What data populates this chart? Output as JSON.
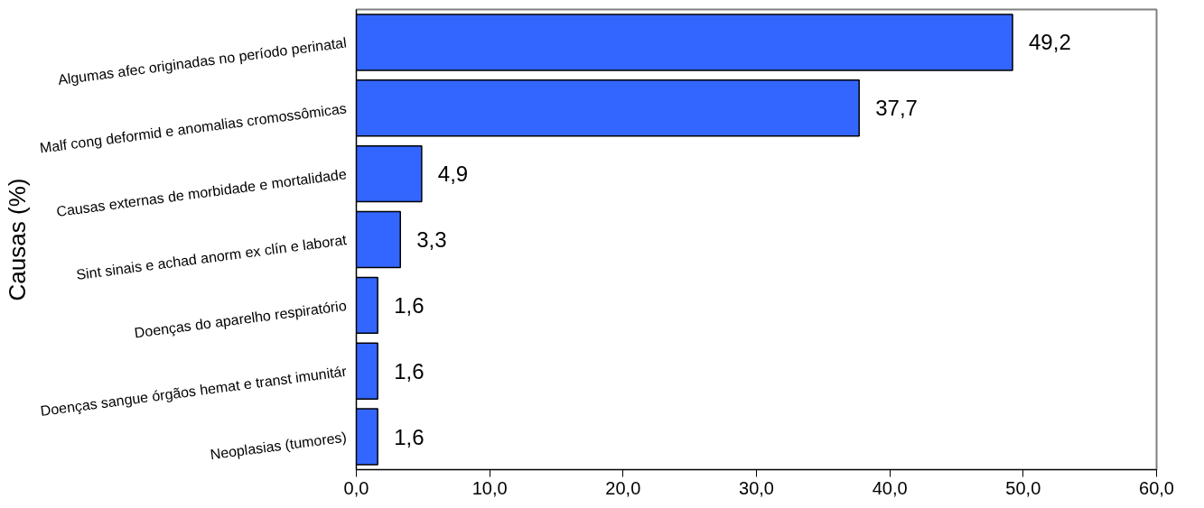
{
  "chart_data": {
    "type": "bar",
    "orientation": "horizontal",
    "ylabel": "Causas (%)",
    "categories": [
      "Algumas afec originadas no período perinatal",
      "Malf cong deformid e anomalias cromossômicas",
      "Causas externas de morbidade e mortalidade",
      "Sint sinais e achad anorm ex clín e laborat",
      "Doenças do aparelho respiratório",
      "Doenças sangue órgãos hemat e transt imunitár",
      "Neoplasias (tumores)"
    ],
    "values": [
      49.2,
      37.7,
      4.9,
      3.3,
      1.6,
      1.6,
      1.6
    ],
    "value_labels": [
      "49,2",
      "37,7",
      "4,9",
      "3,3",
      "1,6",
      "1,6",
      "1,6"
    ],
    "color": "#3366ff",
    "xlim": [
      0,
      60
    ],
    "xticks": [
      {
        "value": 0,
        "label": "0,0"
      },
      {
        "value": 10,
        "label": "10,0"
      },
      {
        "value": 20,
        "label": "20,0"
      },
      {
        "value": 30,
        "label": "30,0"
      },
      {
        "value": 40,
        "label": "40,0"
      },
      {
        "value": 50,
        "label": "50,0"
      },
      {
        "value": 60,
        "label": "60,0"
      }
    ],
    "grid": false
  }
}
